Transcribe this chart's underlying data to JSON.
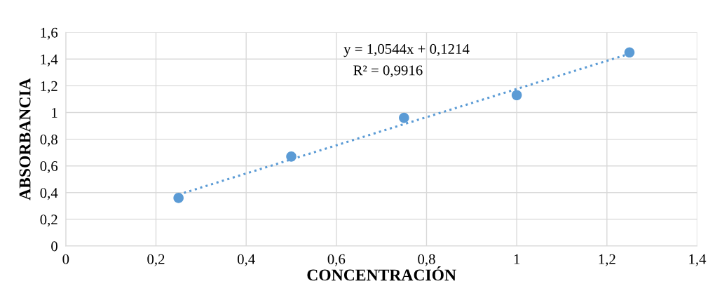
{
  "chart_data": {
    "type": "scatter",
    "xlabel": "CONCENTRACIÓN",
    "ylabel": "ABSORBANCIA",
    "x": [
      0.25,
      0.5,
      0.75,
      1,
      1.25
    ],
    "series": [
      {
        "color": "#5b9bd5",
        "values": [
          0.36,
          0.67,
          0.96,
          1.13,
          1.45
        ],
        "marker": "circle"
      },
      {
        "type": "line",
        "color": "#5b9bd5",
        "x": [
          0.25,
          1.25
        ],
        "values": [
          0.385,
          1.44
        ],
        "line_style": "dotted",
        "marker": "none"
      }
    ],
    "annotations": [
      "y = 1,0544x + 0,1214",
      "R² = 0,9916"
    ],
    "xlim": [
      0,
      1.4
    ],
    "ylim": [
      0,
      1.6
    ],
    "xticks": [
      0,
      {
        "value": 0.2,
        "label": "0,2"
      },
      {
        "value": 0.4,
        "label": "0,4"
      },
      {
        "value": 0.6,
        "label": "0,6"
      },
      {
        "value": 0.8,
        "label": "0,8"
      },
      1,
      {
        "value": 1.2,
        "label": "1,2"
      },
      {
        "value": 1.4,
        "label": "1,4"
      }
    ],
    "yticks": [
      0,
      {
        "value": 0.2,
        "label": "0,2"
      },
      {
        "value": 0.4,
        "label": "0,4"
      },
      {
        "value": 0.6,
        "label": "0,6"
      },
      {
        "value": 0.8,
        "label": "0,8"
      },
      1,
      {
        "value": 1.2,
        "label": "1,2"
      },
      {
        "value": 1.4,
        "label": "1,4"
      },
      {
        "value": 1.6,
        "label": "1,6"
      }
    ],
    "grid": true,
    "legend": false
  }
}
